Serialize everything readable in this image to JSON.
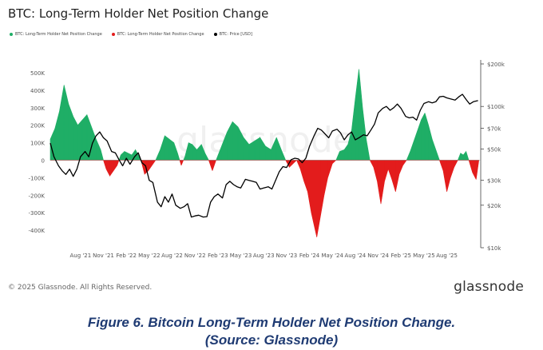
{
  "page": {
    "caption_line1": "Figure 6.  Bitcoin Long-Term Holder Net Position Change.",
    "caption_line2": "(Source: Glassnode)",
    "copyright": "© 2025 Glassnode. All Rights Reserved.",
    "brand": "glassnode",
    "watermark": "glassnode"
  },
  "colors": {
    "positive": "#1fae66",
    "negative": "#e31c1c",
    "price": "#000000",
    "axis_text": "#555555",
    "zero_line": "#999999"
  },
  "chart_data": {
    "type": "area",
    "title": "BTC: Long-Term Holder Net Position Change",
    "legend": [
      {
        "label": "BTC: Long-Term Holder Net Position Change",
        "color": "#1fae66"
      },
      {
        "label": "BTC: Long-Term Holder Net Position Change",
        "color": "#e31c1c"
      },
      {
        "label": "BTC: Price [USD]",
        "color": "#000000"
      }
    ],
    "x_range": [
      2021.25,
      2025.95
    ],
    "x_ticks": [
      {
        "label": "Aug '21",
        "x": 2021.58
      },
      {
        "label": "Nov '21",
        "x": 2021.83
      },
      {
        "label": "Feb '22",
        "x": 2022.08
      },
      {
        "label": "May '22",
        "x": 2022.33
      },
      {
        "label": "Aug '22",
        "x": 2022.58
      },
      {
        "label": "Nov '22",
        "x": 2022.83
      },
      {
        "label": "Feb '23",
        "x": 2023.08
      },
      {
        "label": "May '23",
        "x": 2023.33
      },
      {
        "label": "Aug '23",
        "x": 2023.58
      },
      {
        "label": "Nov '23",
        "x": 2023.83
      },
      {
        "label": "Feb '24",
        "x": 2024.08
      },
      {
        "label": "May '24",
        "x": 2024.33
      },
      {
        "label": "Aug '24",
        "x": 2024.58
      },
      {
        "label": "Nov '24",
        "x": 2024.83
      },
      {
        "label": "Feb '25",
        "x": 2025.08
      },
      {
        "label": "May '25",
        "x": 2025.33
      },
      {
        "label": "Aug '25",
        "x": 2025.58
      }
    ],
    "left_axis": {
      "range": [
        -500000,
        550000
      ],
      "ticks": [
        {
          "label": "500K",
          "value": 500000
        },
        {
          "label": "400K",
          "value": 400000
        },
        {
          "label": "300K",
          "value": 300000
        },
        {
          "label": "200K",
          "value": 200000
        },
        {
          "label": "100K",
          "value": 100000
        },
        {
          "label": "0",
          "value": 0
        },
        {
          "label": "-100K",
          "value": -100000
        },
        {
          "label": "-200K",
          "value": -200000
        },
        {
          "label": "-300K",
          "value": -300000
        },
        {
          "label": "-400K",
          "value": -400000
        }
      ]
    },
    "right_axis": {
      "scale": "log",
      "range": [
        10000,
        200000
      ],
      "ticks": [
        {
          "label": "$200k",
          "value": 200000
        },
        {
          "label": "$100k",
          "value": 100000
        },
        {
          "label": "$70k",
          "value": 70000
        },
        {
          "label": "$50k",
          "value": 50000
        },
        {
          "label": "$30k",
          "value": 30000
        },
        {
          "label": "$20k",
          "value": 20000
        },
        {
          "label": "$10k",
          "value": 10000
        }
      ]
    },
    "series": [
      {
        "name": "BTC: Long-Term Holder Net Position Change",
        "unit": "BTC",
        "points": [
          [
            2021.25,
            120000
          ],
          [
            2021.3,
            180000
          ],
          [
            2021.35,
            280000
          ],
          [
            2021.4,
            430000
          ],
          [
            2021.45,
            320000
          ],
          [
            2021.5,
            250000
          ],
          [
            2021.55,
            200000
          ],
          [
            2021.6,
            230000
          ],
          [
            2021.65,
            260000
          ],
          [
            2021.7,
            190000
          ],
          [
            2021.75,
            120000
          ],
          [
            2021.8,
            60000
          ],
          [
            2021.83,
            0
          ],
          [
            2021.86,
            -50000
          ],
          [
            2021.9,
            -90000
          ],
          [
            2021.94,
            -60000
          ],
          [
            2021.98,
            -30000
          ],
          [
            2022.02,
            30000
          ],
          [
            2022.06,
            50000
          ],
          [
            2022.1,
            40000
          ],
          [
            2022.14,
            30000
          ],
          [
            2022.18,
            60000
          ],
          [
            2022.21,
            30000
          ],
          [
            2022.24,
            0
          ],
          [
            2022.28,
            -80000
          ],
          [
            2022.32,
            -60000
          ],
          [
            2022.36,
            -30000
          ],
          [
            2022.4,
            0
          ],
          [
            2022.45,
            60000
          ],
          [
            2022.5,
            140000
          ],
          [
            2022.55,
            120000
          ],
          [
            2022.6,
            100000
          ],
          [
            2022.64,
            40000
          ],
          [
            2022.68,
            -30000
          ],
          [
            2022.72,
            20000
          ],
          [
            2022.76,
            100000
          ],
          [
            2022.8,
            90000
          ],
          [
            2022.85,
            60000
          ],
          [
            2022.9,
            90000
          ],
          [
            2022.94,
            40000
          ],
          [
            2022.98,
            0
          ],
          [
            2023.02,
            -60000
          ],
          [
            2023.06,
            0
          ],
          [
            2023.12,
            80000
          ],
          [
            2023.18,
            160000
          ],
          [
            2023.24,
            220000
          ],
          [
            2023.3,
            190000
          ],
          [
            2023.36,
            130000
          ],
          [
            2023.42,
            90000
          ],
          [
            2023.48,
            110000
          ],
          [
            2023.54,
            130000
          ],
          [
            2023.6,
            80000
          ],
          [
            2023.66,
            60000
          ],
          [
            2023.72,
            130000
          ],
          [
            2023.78,
            50000
          ],
          [
            2023.82,
            0
          ],
          [
            2023.86,
            -40000
          ],
          [
            2023.9,
            -20000
          ],
          [
            2023.94,
            0
          ],
          [
            2023.98,
            -50000
          ],
          [
            2024.02,
            -120000
          ],
          [
            2024.06,
            -180000
          ],
          [
            2024.1,
            -300000
          ],
          [
            2024.16,
            -440000
          ],
          [
            2024.2,
            -320000
          ],
          [
            2024.24,
            -200000
          ],
          [
            2024.28,
            -100000
          ],
          [
            2024.33,
            -20000
          ],
          [
            2024.37,
            0
          ],
          [
            2024.41,
            50000
          ],
          [
            2024.46,
            60000
          ],
          [
            2024.5,
            90000
          ],
          [
            2024.54,
            170000
          ],
          [
            2024.58,
            350000
          ],
          [
            2024.62,
            520000
          ],
          [
            2024.66,
            300000
          ],
          [
            2024.7,
            120000
          ],
          [
            2024.74,
            0
          ],
          [
            2024.78,
            -40000
          ],
          [
            2024.82,
            -120000
          ],
          [
            2024.86,
            -250000
          ],
          [
            2024.9,
            -120000
          ],
          [
            2024.94,
            -50000
          ],
          [
            2024.98,
            -110000
          ],
          [
            2025.02,
            -180000
          ],
          [
            2025.06,
            -80000
          ],
          [
            2025.1,
            -30000
          ],
          [
            2025.14,
            0
          ],
          [
            2025.18,
            50000
          ],
          [
            2025.24,
            140000
          ],
          [
            2025.3,
            230000
          ],
          [
            2025.34,
            270000
          ],
          [
            2025.38,
            200000
          ],
          [
            2025.42,
            120000
          ],
          [
            2025.46,
            60000
          ],
          [
            2025.5,
            0
          ],
          [
            2025.54,
            -60000
          ],
          [
            2025.58,
            -180000
          ],
          [
            2025.62,
            -100000
          ],
          [
            2025.66,
            -40000
          ],
          [
            2025.7,
            0
          ],
          [
            2025.73,
            40000
          ],
          [
            2025.76,
            30000
          ],
          [
            2025.79,
            50000
          ],
          [
            2025.82,
            0
          ],
          [
            2025.86,
            -70000
          ],
          [
            2025.9,
            -110000
          ],
          [
            2025.93,
            0
          ]
        ]
      },
      {
        "name": "BTC: Price [USD]",
        "unit": "USD",
        "points": [
          [
            2021.25,
            55000
          ],
          [
            2021.29,
            44000
          ],
          [
            2021.34,
            38000
          ],
          [
            2021.38,
            35000
          ],
          [
            2021.42,
            33000
          ],
          [
            2021.46,
            36000
          ],
          [
            2021.5,
            32000
          ],
          [
            2021.54,
            36000
          ],
          [
            2021.58,
            44000
          ],
          [
            2021.63,
            48000
          ],
          [
            2021.67,
            44000
          ],
          [
            2021.71,
            55000
          ],
          [
            2021.75,
            62000
          ],
          [
            2021.79,
            66000
          ],
          [
            2021.83,
            60000
          ],
          [
            2021.87,
            57000
          ],
          [
            2021.92,
            48000
          ],
          [
            2021.96,
            47000
          ],
          [
            2022.0,
            42000
          ],
          [
            2022.04,
            38000
          ],
          [
            2022.08,
            43000
          ],
          [
            2022.12,
            39000
          ],
          [
            2022.17,
            44000
          ],
          [
            2022.21,
            47000
          ],
          [
            2022.25,
            40000
          ],
          [
            2022.29,
            38000
          ],
          [
            2022.33,
            30000
          ],
          [
            2022.37,
            29000
          ],
          [
            2022.42,
            21000
          ],
          [
            2022.46,
            19500
          ],
          [
            2022.5,
            23000
          ],
          [
            2022.54,
            21000
          ],
          [
            2022.58,
            24000
          ],
          [
            2022.62,
            20000
          ],
          [
            2022.67,
            19000
          ],
          [
            2022.71,
            19500
          ],
          [
            2022.75,
            20500
          ],
          [
            2022.79,
            16500
          ],
          [
            2022.83,
            16800
          ],
          [
            2022.87,
            17000
          ],
          [
            2022.92,
            16500
          ],
          [
            2022.96,
            16600
          ],
          [
            2023.0,
            21000
          ],
          [
            2023.04,
            23000
          ],
          [
            2023.08,
            24000
          ],
          [
            2023.13,
            22500
          ],
          [
            2023.17,
            28000
          ],
          [
            2023.21,
            29500
          ],
          [
            2023.25,
            28000
          ],
          [
            2023.29,
            27000
          ],
          [
            2023.33,
            26500
          ],
          [
            2023.38,
            30500
          ],
          [
            2023.42,
            30000
          ],
          [
            2023.46,
            29500
          ],
          [
            2023.5,
            29000
          ],
          [
            2023.54,
            26000
          ],
          [
            2023.58,
            26500
          ],
          [
            2023.63,
            27000
          ],
          [
            2023.67,
            26000
          ],
          [
            2023.71,
            30000
          ],
          [
            2023.75,
            34500
          ],
          [
            2023.79,
            37500
          ],
          [
            2023.83,
            37000
          ],
          [
            2023.88,
            42000
          ],
          [
            2023.92,
            43000
          ],
          [
            2023.96,
            42500
          ],
          [
            2024.0,
            40000
          ],
          [
            2024.04,
            43000
          ],
          [
            2024.08,
            52000
          ],
          [
            2024.13,
            62000
          ],
          [
            2024.17,
            70000
          ],
          [
            2024.21,
            68000
          ],
          [
            2024.25,
            64000
          ],
          [
            2024.29,
            60000
          ],
          [
            2024.33,
            67000
          ],
          [
            2024.38,
            69000
          ],
          [
            2024.42,
            65000
          ],
          [
            2024.46,
            58000
          ],
          [
            2024.5,
            63000
          ],
          [
            2024.54,
            66000
          ],
          [
            2024.58,
            58000
          ],
          [
            2024.62,
            60000
          ],
          [
            2024.67,
            63000
          ],
          [
            2024.71,
            62000
          ],
          [
            2024.75,
            68000
          ],
          [
            2024.79,
            75000
          ],
          [
            2024.83,
            90000
          ],
          [
            2024.88,
            97000
          ],
          [
            2024.92,
            100000
          ],
          [
            2024.96,
            94000
          ],
          [
            2025.0,
            98000
          ],
          [
            2025.04,
            104000
          ],
          [
            2025.08,
            97000
          ],
          [
            2025.13,
            85000
          ],
          [
            2025.17,
            83000
          ],
          [
            2025.21,
            84000
          ],
          [
            2025.25,
            80000
          ],
          [
            2025.29,
            94000
          ],
          [
            2025.33,
            105000
          ],
          [
            2025.38,
            108000
          ],
          [
            2025.42,
            106000
          ],
          [
            2025.46,
            108000
          ],
          [
            2025.5,
            117000
          ],
          [
            2025.54,
            118000
          ],
          [
            2025.58,
            115000
          ],
          [
            2025.62,
            113000
          ],
          [
            2025.67,
            111000
          ],
          [
            2025.71,
            117000
          ],
          [
            2025.75,
            122000
          ],
          [
            2025.79,
            112000
          ],
          [
            2025.83,
            104000
          ],
          [
            2025.87,
            108000
          ],
          [
            2025.92,
            110000
          ]
        ]
      }
    ]
  }
}
